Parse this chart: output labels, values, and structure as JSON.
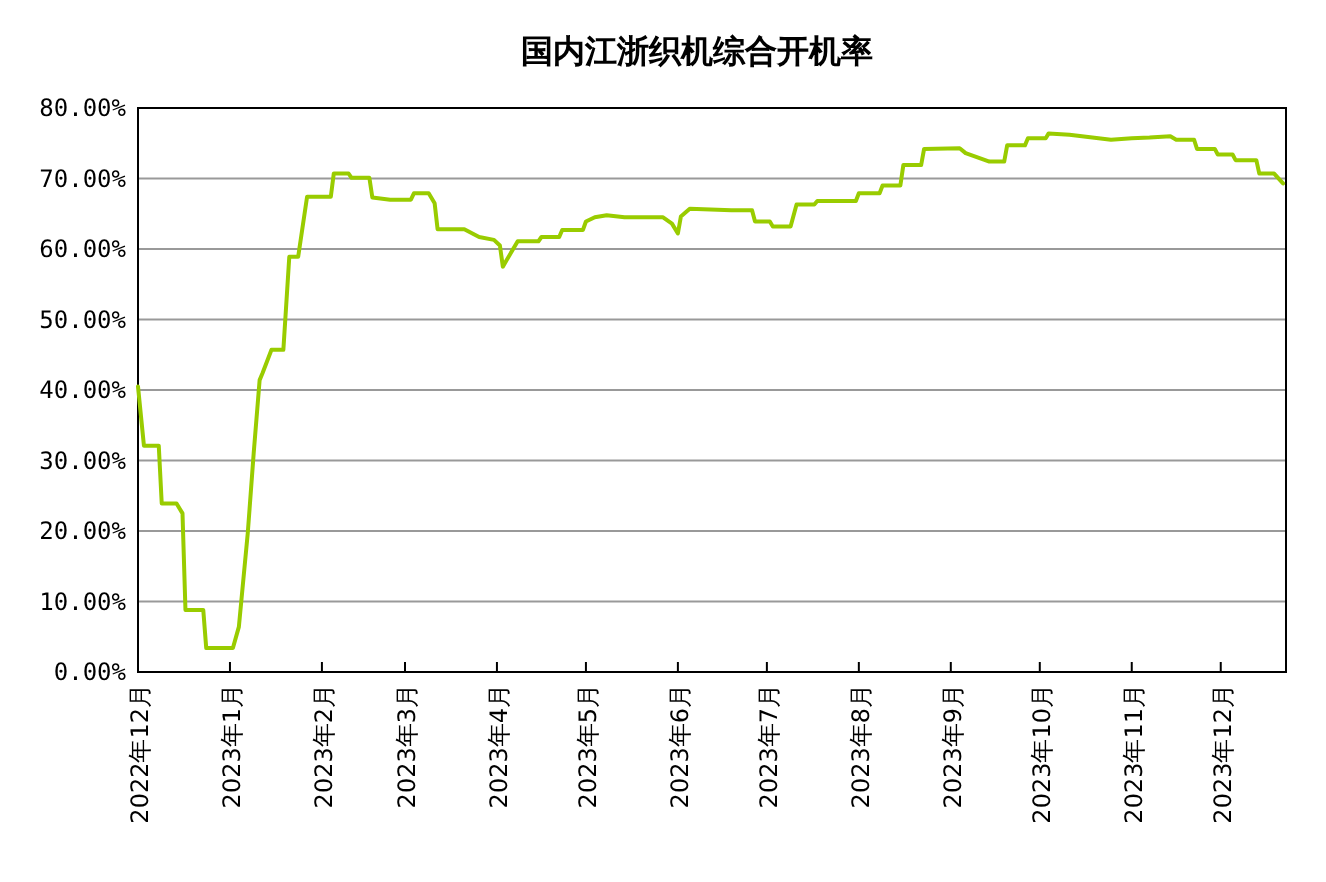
{
  "chart_data": {
    "type": "line",
    "title": "国内江浙织机综合开机率",
    "color": "#99cc00",
    "grid": "y",
    "marker": "none",
    "line_style": "solid",
    "xlim": [
      "2022-12-01",
      "2023-12-23"
    ],
    "xticks": [
      {
        "value": "2022-12-01",
        "label": "2022年12月"
      },
      {
        "value": "2023-01-01",
        "label": "2023年1月"
      },
      {
        "value": "2023-02-01",
        "label": "2023年2月"
      },
      {
        "value": "2023-03-01",
        "label": "2023年3月"
      },
      {
        "value": "2023-04-01",
        "label": "2023年4月"
      },
      {
        "value": "2023-05-01",
        "label": "2023年5月"
      },
      {
        "value": "2023-06-01",
        "label": "2023年6月"
      },
      {
        "value": "2023-07-01",
        "label": "2023年7月"
      },
      {
        "value": "2023-08-01",
        "label": "2023年8月"
      },
      {
        "value": "2023-09-01",
        "label": "2023年9月"
      },
      {
        "value": "2023-10-01",
        "label": "2023年10月"
      },
      {
        "value": "2023-11-01",
        "label": "2023年11月"
      },
      {
        "value": "2023-12-01",
        "label": "2023年12月"
      }
    ],
    "ylim": [
      0,
      80
    ],
    "yticks": [
      {
        "value": 0,
        "label": "0.00%"
      },
      {
        "value": 10,
        "label": "10.00%"
      },
      {
        "value": 20,
        "label": "20.00%"
      },
      {
        "value": 30,
        "label": "30.00%"
      },
      {
        "value": 40,
        "label": "40.00%"
      },
      {
        "value": 50,
        "label": "50.00%"
      },
      {
        "value": 60,
        "label": "60.00%"
      },
      {
        "value": 70,
        "label": "70.00%"
      },
      {
        "value": 80,
        "label": "80.00%"
      }
    ],
    "x": [
      "2022-12-01",
      "2022-12-03",
      "2022-12-08",
      "2022-12-09",
      "2022-12-14",
      "2022-12-16",
      "2022-12-17",
      "2022-12-23",
      "2022-12-24",
      "2023-01-02",
      "2023-01-04",
      "2023-01-07",
      "2023-01-09",
      "2023-01-11",
      "2023-01-12",
      "2023-01-15",
      "2023-01-19",
      "2023-01-21",
      "2023-01-24",
      "2023-01-27",
      "2023-02-04",
      "2023-02-05",
      "2023-02-10",
      "2023-02-11",
      "2023-02-17",
      "2023-02-18",
      "2023-02-24",
      "2023-03-03",
      "2023-03-04",
      "2023-03-09",
      "2023-03-11",
      "2023-03-12",
      "2023-03-21",
      "2023-03-26",
      "2023-03-31",
      "2023-04-02",
      "2023-04-03",
      "2023-04-08",
      "2023-04-15",
      "2023-04-16",
      "2023-04-22",
      "2023-04-23",
      "2023-04-30",
      "2023-05-01",
      "2023-05-04",
      "2023-05-08",
      "2023-05-14",
      "2023-05-27",
      "2023-05-30",
      "2023-06-01",
      "2023-06-02",
      "2023-06-05",
      "2023-06-19",
      "2023-06-26",
      "2023-06-27",
      "2023-07-02",
      "2023-07-03",
      "2023-07-09",
      "2023-07-11",
      "2023-07-17",
      "2023-07-18",
      "2023-07-31",
      "2023-08-01",
      "2023-08-08",
      "2023-08-09",
      "2023-08-15",
      "2023-08-16",
      "2023-08-22",
      "2023-08-23",
      "2023-09-04",
      "2023-09-06",
      "2023-09-14",
      "2023-09-19",
      "2023-09-20",
      "2023-09-26",
      "2023-09-27",
      "2023-10-03",
      "2023-10-04",
      "2023-10-11",
      "2023-10-25",
      "2023-11-01",
      "2023-11-07",
      "2023-11-14",
      "2023-11-16",
      "2023-11-22",
      "2023-11-23",
      "2023-11-29",
      "2023-11-30",
      "2023-12-05",
      "2023-12-06",
      "2023-12-13",
      "2023-12-14",
      "2023-12-19",
      "2023-12-22"
    ],
    "values": [
      40.5,
      32.1,
      32.1,
      23.9,
      23.9,
      22.5,
      8.8,
      8.8,
      3.4,
      3.4,
      6.4,
      19.7,
      31.0,
      41.4,
      42.4,
      45.7,
      45.7,
      58.9,
      58.9,
      67.4,
      67.4,
      70.7,
      70.7,
      70.1,
      70.1,
      67.3,
      67.0,
      67.0,
      67.9,
      67.9,
      66.5,
      62.8,
      62.8,
      61.7,
      61.3,
      60.5,
      57.5,
      61.1,
      61.1,
      61.7,
      61.7,
      62.7,
      62.7,
      63.9,
      64.5,
      64.8,
      64.5,
      64.5,
      63.6,
      62.2,
      64.6,
      65.7,
      65.5,
      65.5,
      63.9,
      63.9,
      63.2,
      63.2,
      66.3,
      66.3,
      66.8,
      66.8,
      67.9,
      67.9,
      69.0,
      69.0,
      71.9,
      71.9,
      74.2,
      74.3,
      73.6,
      72.4,
      72.4,
      74.7,
      74.7,
      75.7,
      75.7,
      76.4,
      76.2,
      75.5,
      75.7,
      75.8,
      76.0,
      75.5,
      75.5,
      74.2,
      74.2,
      73.4,
      73.4,
      72.6,
      72.6,
      70.7,
      70.7,
      69.3
    ]
  }
}
